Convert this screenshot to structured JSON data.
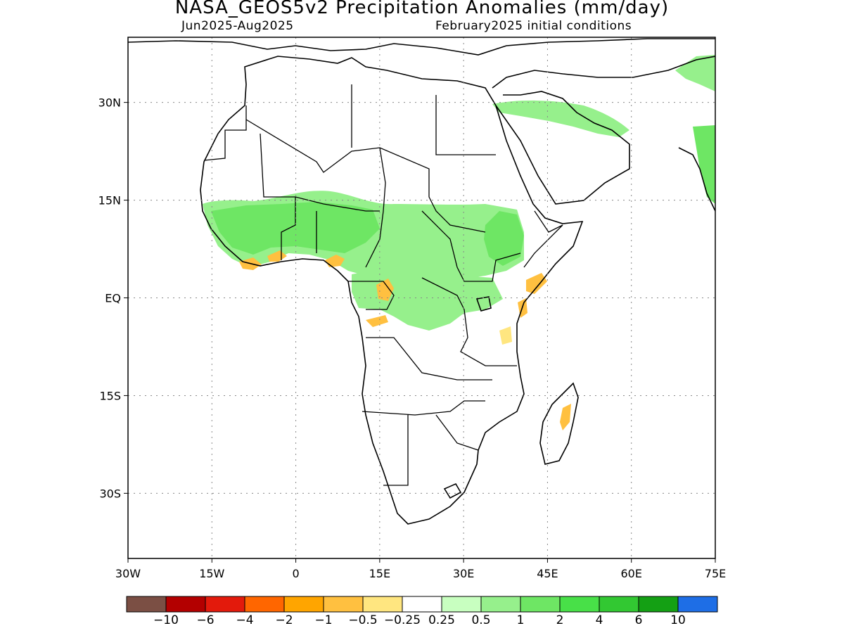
{
  "header": {
    "title": "NASA_GEOS5v2 Precipitation Anomalies (mm/day)",
    "period": "Jun2025-Aug2025",
    "init": "February2025 initial conditions"
  },
  "map": {
    "lon_range": [
      -30,
      75
    ],
    "lat_range": [
      -40,
      40
    ],
    "lon_ticks": [
      {
        "value": -30,
        "label": "30W"
      },
      {
        "value": -15,
        "label": "15W"
      },
      {
        "value": 0,
        "label": "0"
      },
      {
        "value": 15,
        "label": "15E"
      },
      {
        "value": 30,
        "label": "30E"
      },
      {
        "value": 45,
        "label": "45E"
      },
      {
        "value": 60,
        "label": "60E"
      },
      {
        "value": 75,
        "label": "75E"
      }
    ],
    "lat_ticks": [
      {
        "value": 30,
        "label": "30N"
      },
      {
        "value": 15,
        "label": "15N"
      },
      {
        "value": 0,
        "label": "EQ"
      },
      {
        "value": -15,
        "label": "15S"
      },
      {
        "value": -30,
        "label": "30S"
      }
    ],
    "grid": true
  },
  "colorbar": {
    "colors": [
      "#7b4f44",
      "#b30000",
      "#e31a0c",
      "#ff6600",
      "#ffa500",
      "#ffc040",
      "#ffe680",
      "#ffffff",
      "#c8ffc0",
      "#96f08c",
      "#6ee664",
      "#48e048",
      "#32c832",
      "#14a014",
      "#1e6ee6"
    ],
    "labels": [
      "-10",
      "-6",
      "-4",
      "-2",
      "-1",
      "-0.5",
      "-0.25",
      "0.25",
      "0.5",
      "1",
      "2",
      "4",
      "6",
      "10"
    ]
  }
}
